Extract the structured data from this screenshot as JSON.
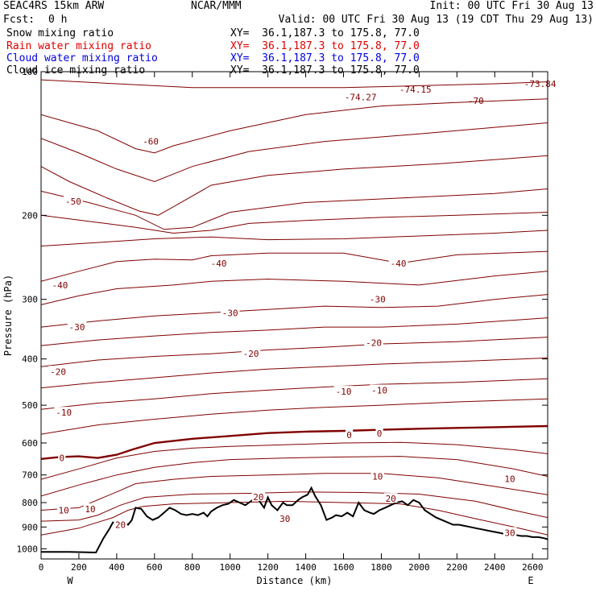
{
  "header": {
    "model": "SEAC4RS 15km ARW",
    "center": "NCAR/MMM",
    "init": "Init: 00 UTC Fri 30 Aug 13",
    "fcst_label": "Fcst:",
    "fcst_value": "0 h",
    "valid": "Valid: 00 UTC Fri 30 Aug 13 (19 CDT Thu 29 Aug 13)"
  },
  "fields": [
    {
      "name": "Snow mixing ratio",
      "xy": "XY=  36.1,187.3 to 175.8, 77.0",
      "color": "#000000"
    },
    {
      "name": "Rain water mixing ratio",
      "xy": "XY=  36.1,187.3 to 175.8, 77.0",
      "color": "#e00000"
    },
    {
      "name": "Cloud water mixing ratio",
      "xy": "XY=  36.1,187.3 to 175.8, 77.0",
      "color": "#0000e0"
    },
    {
      "name": "Cloud ice mixing ratio",
      "xy": "XY=  36.1,187.3 to 175.8, 77.0",
      "color": "#000000"
    }
  ],
  "chart_data": {
    "type": "line",
    "title": "",
    "xlabel": "Distance (km)",
    "ylabel": "Pressure (hPa)",
    "xlim": [
      0,
      2680
    ],
    "ylim": [
      1050,
      100
    ],
    "y_scale": "log",
    "x_ticks": [
      0,
      200,
      400,
      600,
      800,
      1000,
      1200,
      1400,
      1600,
      1800,
      2000,
      2200,
      2400,
      2600
    ],
    "y_ticks": [
      100,
      200,
      300,
      400,
      500,
      600,
      700,
      800,
      900,
      1000
    ],
    "x_end_labels": {
      "left": "W",
      "right": "E"
    },
    "grid": false,
    "colors": {
      "isotherm": "#800000",
      "zero_isotherm": "#800000",
      "terrain": "#000000"
    },
    "isotherm_labels": [
      {
        "text": "-60",
        "x": 580,
        "p": 140
      },
      {
        "text": "-50",
        "x": 170,
        "p": 187
      },
      {
        "text": "-40",
        "x": 940,
        "p": 252
      },
      {
        "text": "-40",
        "x": 1890,
        "p": 252
      },
      {
        "text": "-40",
        "x": 100,
        "p": 280
      },
      {
        "text": "-30",
        "x": 1000,
        "p": 320
      },
      {
        "text": "-30",
        "x": 1780,
        "p": 300
      },
      {
        "text": "-30",
        "x": 190,
        "p": 343
      },
      {
        "text": "-20",
        "x": 1110,
        "p": 390
      },
      {
        "text": "-20",
        "x": 1760,
        "p": 370
      },
      {
        "text": "-20",
        "x": 90,
        "p": 425
      },
      {
        "text": "-10",
        "x": 1600,
        "p": 468
      },
      {
        "text": "-10",
        "x": 1790,
        "p": 465
      },
      {
        "text": "-10",
        "x": 120,
        "p": 518
      },
      {
        "text": "0",
        "x": 110,
        "p": 645
      },
      {
        "text": "0",
        "x": 1630,
        "p": 577
      },
      {
        "text": "0",
        "x": 1790,
        "p": 573
      },
      {
        "text": "10",
        "x": 1780,
        "p": 705
      },
      {
        "text": "10",
        "x": 2480,
        "p": 713
      },
      {
        "text": "10",
        "x": 120,
        "p": 830
      },
      {
        "text": "10",
        "x": 260,
        "p": 825
      },
      {
        "text": "20",
        "x": 1150,
        "p": 778
      },
      {
        "text": "20",
        "x": 1850,
        "p": 785
      },
      {
        "text": "20",
        "x": 420,
        "p": 890
      },
      {
        "text": "30",
        "x": 1290,
        "p": 865
      },
      {
        "text": "30",
        "x": 2480,
        "p": 925
      }
    ],
    "extreme_labels": [
      {
        "text": "-74.27",
        "x": 1690,
        "p": 113
      },
      {
        "text": "-74.15",
        "x": 1980,
        "p": 109
      },
      {
        "text": "-70",
        "x": 2300,
        "p": 115
      },
      {
        "text": "-73.84",
        "x": 2640,
        "p": 106
      }
    ],
    "isotherms": [
      {
        "level": -80,
        "x": [
          0,
          400,
          800,
          1200,
          1600,
          2000,
          2400,
          2680
        ],
        "p": [
          104,
          106,
          108,
          108,
          108,
          107,
          106,
          105
        ]
      },
      {
        "level": -70,
        "x": [
          0,
          300,
          500,
          600,
          700,
          1000,
          1400,
          1800,
          2200,
          2680
        ],
        "p": [
          123,
          133,
          145,
          148,
          143,
          133,
          123,
          118,
          116,
          114
        ]
      },
      {
        "level": -65,
        "x": [
          0,
          200,
          400,
          600,
          800,
          1100,
          1500,
          2000,
          2680
        ],
        "p": [
          138,
          148,
          160,
          170,
          158,
          147,
          140,
          135,
          128
        ]
      },
      {
        "level": -60,
        "x": [
          0,
          150,
          350,
          520,
          620,
          720,
          900,
          1200,
          1600,
          2100,
          2680
        ],
        "p": [
          158,
          170,
          184,
          196,
          200,
          190,
          173,
          165,
          160,
          156,
          150
        ]
      },
      {
        "level": -55,
        "x": [
          0,
          250,
          500,
          650,
          800,
          1000,
          1400,
          1900,
          2400,
          2680
        ],
        "p": [
          178,
          188,
          200,
          214,
          212,
          197,
          188,
          184,
          180,
          176
        ]
      },
      {
        "level": -50,
        "x": [
          0,
          300,
          500,
          700,
          900,
          1100,
          1400,
          1800,
          2200,
          2680
        ],
        "p": [
          200,
          207,
          212,
          218,
          215,
          208,
          205,
          202,
          200,
          197
        ]
      },
      {
        "level": -45,
        "x": [
          0,
          300,
          600,
          900,
          1200,
          1600,
          2000,
          2400,
          2680
        ],
        "p": [
          232,
          228,
          224,
          222,
          225,
          224,
          221,
          218,
          215
        ]
      },
      {
        "level": -40,
        "x": [
          0,
          200,
          400,
          600,
          800,
          900,
          1200,
          1600,
          1900,
          2200,
          2680
        ],
        "p": [
          275,
          262,
          250,
          247,
          248,
          243,
          240,
          240,
          252,
          242,
          238
        ]
      },
      {
        "level": -35,
        "x": [
          0,
          200,
          400,
          700,
          900,
          1200,
          1600,
          2000,
          2400,
          2680
        ],
        "p": [
          308,
          295,
          285,
          280,
          275,
          272,
          275,
          280,
          268,
          262
        ]
      },
      {
        "level": -30,
        "x": [
          0,
          300,
          600,
          900,
          1200,
          1500,
          1800,
          2100,
          2400,
          2680
        ],
        "p": [
          343,
          333,
          325,
          320,
          315,
          310,
          312,
          310,
          300,
          293
        ]
      },
      {
        "level": -25,
        "x": [
          0,
          300,
          600,
          900,
          1200,
          1500,
          1800,
          2200,
          2680
        ],
        "p": [
          375,
          365,
          358,
          352,
          348,
          343,
          343,
          338,
          328
        ]
      },
      {
        "level": -20,
        "x": [
          0,
          300,
          600,
          900,
          1200,
          1500,
          1800,
          2200,
          2680
        ],
        "p": [
          415,
          402,
          395,
          390,
          383,
          378,
          372,
          368,
          360
        ]
      },
      {
        "level": -15,
        "x": [
          0,
          300,
          600,
          900,
          1200,
          1500,
          1800,
          2200,
          2680
        ],
        "p": [
          460,
          448,
          438,
          428,
          420,
          415,
          410,
          405,
          398
        ]
      },
      {
        "level": -10,
        "x": [
          0,
          300,
          600,
          900,
          1200,
          1500,
          1800,
          2200,
          2680
        ],
        "p": [
          510,
          495,
          485,
          473,
          465,
          458,
          452,
          448,
          440
        ]
      },
      {
        "level": -5,
        "x": [
          0,
          300,
          600,
          900,
          1200,
          1500,
          1800,
          2200,
          2680
        ],
        "p": [
          575,
          550,
          535,
          522,
          512,
          505,
          500,
          492,
          485
        ]
      },
      {
        "level": 0,
        "x": [
          0,
          100,
          200,
          300,
          400,
          480,
          600,
          800,
          1000,
          1200,
          1400,
          1600,
          1800,
          2000,
          2200,
          2400,
          2680
        ],
        "p": [
          648,
          642,
          640,
          645,
          635,
          620,
          600,
          588,
          580,
          572,
          568,
          566,
          563,
          560,
          558,
          556,
          553
        ]
      },
      {
        "level": 5,
        "x": [
          0,
          200,
          400,
          600,
          800,
          1000,
          1300,
          1600,
          1900,
          2200,
          2500,
          2680
        ],
        "p": [
          715,
          680,
          645,
          625,
          615,
          610,
          605,
          600,
          598,
          605,
          620,
          632
        ]
      },
      {
        "level": 10,
        "x": [
          0,
          200,
          400,
          600,
          800,
          1000,
          1300,
          1600,
          1900,
          2200,
          2500,
          2680
        ],
        "p": [
          775,
          735,
          700,
          675,
          660,
          650,
          645,
          642,
          640,
          650,
          680,
          705
        ]
      },
      {
        "level": 15,
        "x": [
          0,
          200,
          400,
          500,
          700,
          900,
          1200,
          1500,
          1800,
          2100,
          2400,
          2680
        ],
        "p": [
          830,
          820,
          760,
          730,
          715,
          705,
          700,
          695,
          695,
          710,
          740,
          770
        ]
      },
      {
        "level": 20,
        "x": [
          0,
          200,
          300,
          420,
          550,
          800,
          1100,
          1400,
          1700,
          2000,
          2300,
          2500,
          2680
        ],
        "p": [
          875,
          870,
          850,
          810,
          780,
          768,
          765,
          760,
          762,
          768,
          795,
          830,
          860
        ]
      },
      {
        "level": 25,
        "x": [
          0,
          200,
          380,
          460,
          540,
          700,
          1000,
          1300,
          1600,
          1900,
          2100,
          2300,
          2500,
          2680
        ],
        "p": [
          935,
          905,
          860,
          830,
          815,
          805,
          800,
          795,
          800,
          805,
          830,
          865,
          900,
          935
        ]
      }
    ],
    "terrain": {
      "x": [
        0,
        150,
        290,
        330,
        360,
        380,
        400,
        420,
        440,
        460,
        480,
        500,
        530,
        560,
        590,
        620,
        650,
        680,
        710,
        740,
        770,
        800,
        830,
        860,
        880,
        900,
        930,
        960,
        990,
        1020,
        1050,
        1080,
        1110,
        1140,
        1160,
        1180,
        1200,
        1220,
        1250,
        1280,
        1300,
        1330,
        1360,
        1380,
        1410,
        1430,
        1450,
        1480,
        1510,
        1540,
        1560,
        1590,
        1620,
        1650,
        1680,
        1710,
        1740,
        1760,
        1790,
        1820,
        1850,
        1880,
        1910,
        1940,
        1970,
        2000,
        2030,
        2060,
        2090,
        2120,
        2150,
        2180,
        2210,
        2240,
        2270,
        2300,
        2330,
        2360,
        2390,
        2420,
        2450,
        2480,
        2510,
        2540,
        2570,
        2600,
        2630,
        2660,
        2680
      ],
      "p": [
        1015,
        1015,
        1018,
        950,
        910,
        880,
        880,
        895,
        880,
        890,
        870,
        820,
        825,
        855,
        870,
        860,
        840,
        820,
        830,
        845,
        850,
        845,
        850,
        840,
        855,
        835,
        820,
        810,
        805,
        790,
        800,
        810,
        795,
        775,
        800,
        820,
        780,
        810,
        830,
        800,
        810,
        810,
        790,
        780,
        770,
        745,
        775,
        810,
        870,
        860,
        850,
        855,
        840,
        855,
        800,
        830,
        840,
        845,
        830,
        820,
        810,
        800,
        795,
        810,
        790,
        800,
        830,
        845,
        860,
        870,
        880,
        890,
        890,
        895,
        900,
        905,
        910,
        915,
        920,
        925,
        930,
        935,
        935,
        940,
        940,
        945,
        945,
        950,
        955
      ]
    }
  }
}
